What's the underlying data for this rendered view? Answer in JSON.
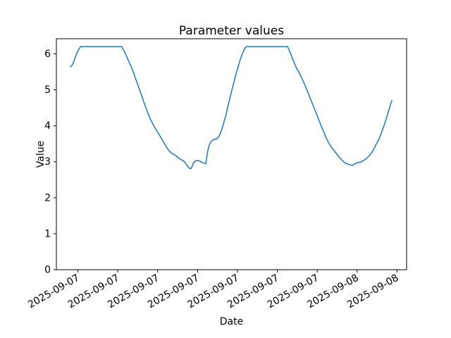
{
  "chart_data": {
    "type": "line",
    "title": "Parameter values",
    "xlabel": "Date",
    "ylabel": "Value",
    "x_unit": "hours since first x tick",
    "xlim": [
      -1.62,
      24.72
    ],
    "ylim": [
      0,
      6.42
    ],
    "grid": false,
    "legend": false,
    "background_color": "#ffffff",
    "axes_color": "#000000",
    "yticks": {
      "values": [
        0,
        1,
        2,
        3,
        4,
        5,
        6
      ],
      "labels": [
        "0",
        "1",
        "2",
        "3",
        "4",
        "5",
        "6"
      ]
    },
    "xticks": {
      "rotation_deg": 30,
      "values": [
        0,
        3,
        6,
        9,
        12,
        15,
        18,
        21,
        24
      ],
      "labels": [
        "2025-09-07",
        "2025-09-07",
        "2025-09-07",
        "2025-09-07",
        "2025-09-07",
        "2025-09-07",
        "2025-09-07",
        "2025-09-08",
        "2025-09-08"
      ]
    },
    "series": [
      {
        "name": "parameter-values-line",
        "color": "#1f77b4",
        "line_width": 1.5,
        "points": [
          [
            -0.56,
            5.64
          ],
          [
            -0.45,
            5.68
          ],
          [
            -0.34,
            5.76
          ],
          [
            -0.24,
            5.86
          ],
          [
            -0.13,
            5.97
          ],
          [
            -0.03,
            6.06
          ],
          [
            0.08,
            6.13
          ],
          [
            0.19,
            6.2
          ],
          [
            3.31,
            6.2
          ],
          [
            3.58,
            6.0
          ],
          [
            3.84,
            5.78
          ],
          [
            4.11,
            5.55
          ],
          [
            4.37,
            5.28
          ],
          [
            4.64,
            5.0
          ],
          [
            4.9,
            4.72
          ],
          [
            5.17,
            4.44
          ],
          [
            5.43,
            4.2
          ],
          [
            5.75,
            3.97
          ],
          [
            6.07,
            3.78
          ],
          [
            6.39,
            3.58
          ],
          [
            6.65,
            3.42
          ],
          [
            6.86,
            3.3
          ],
          [
            7.08,
            3.23
          ],
          [
            7.29,
            3.19
          ],
          [
            7.5,
            3.13
          ],
          [
            7.71,
            3.07
          ],
          [
            7.92,
            3.03
          ],
          [
            8.08,
            2.97
          ],
          [
            8.24,
            2.88
          ],
          [
            8.4,
            2.81
          ],
          [
            8.51,
            2.81
          ],
          [
            8.61,
            2.89
          ],
          [
            8.72,
            2.99
          ],
          [
            8.88,
            3.03
          ],
          [
            9.04,
            3.04
          ],
          [
            9.2,
            3.01
          ],
          [
            9.35,
            2.98
          ],
          [
            9.51,
            2.96
          ],
          [
            9.62,
            2.95
          ],
          [
            9.67,
            3.08
          ],
          [
            9.78,
            3.33
          ],
          [
            9.88,
            3.47
          ],
          [
            9.99,
            3.55
          ],
          [
            10.15,
            3.61
          ],
          [
            10.31,
            3.63
          ],
          [
            10.47,
            3.64
          ],
          [
            10.63,
            3.72
          ],
          [
            10.79,
            3.87
          ],
          [
            10.94,
            4.05
          ],
          [
            11.1,
            4.25
          ],
          [
            11.26,
            4.5
          ],
          [
            11.42,
            4.75
          ],
          [
            11.58,
            5.0
          ],
          [
            11.74,
            5.22
          ],
          [
            11.9,
            5.45
          ],
          [
            12.06,
            5.65
          ],
          [
            12.22,
            5.85
          ],
          [
            12.38,
            6.02
          ],
          [
            12.54,
            6.15
          ],
          [
            12.69,
            6.2
          ],
          [
            15.77,
            6.2
          ],
          [
            15.98,
            6.02
          ],
          [
            16.19,
            5.82
          ],
          [
            16.4,
            5.63
          ],
          [
            16.61,
            5.5
          ],
          [
            16.83,
            5.33
          ],
          [
            17.04,
            5.16
          ],
          [
            17.25,
            4.97
          ],
          [
            17.46,
            4.78
          ],
          [
            17.67,
            4.58
          ],
          [
            17.89,
            4.38
          ],
          [
            18.1,
            4.18
          ],
          [
            18.31,
            3.98
          ],
          [
            18.52,
            3.8
          ],
          [
            18.73,
            3.62
          ],
          [
            18.95,
            3.47
          ],
          [
            19.16,
            3.36
          ],
          [
            19.37,
            3.26
          ],
          [
            19.58,
            3.16
          ],
          [
            19.79,
            3.07
          ],
          [
            20.01,
            2.99
          ],
          [
            20.22,
            2.94
          ],
          [
            20.43,
            2.92
          ],
          [
            20.64,
            2.9
          ],
          [
            20.85,
            2.95
          ],
          [
            21.07,
            2.98
          ],
          [
            21.28,
            2.99
          ],
          [
            21.49,
            3.04
          ],
          [
            21.7,
            3.09
          ],
          [
            21.91,
            3.17
          ],
          [
            22.13,
            3.27
          ],
          [
            22.28,
            3.37
          ],
          [
            22.44,
            3.49
          ],
          [
            22.6,
            3.6
          ],
          [
            22.76,
            3.74
          ],
          [
            22.92,
            3.9
          ],
          [
            23.08,
            4.07
          ],
          [
            23.24,
            4.26
          ],
          [
            23.4,
            4.45
          ],
          [
            23.5,
            4.59
          ],
          [
            23.61,
            4.7
          ]
        ]
      }
    ]
  }
}
